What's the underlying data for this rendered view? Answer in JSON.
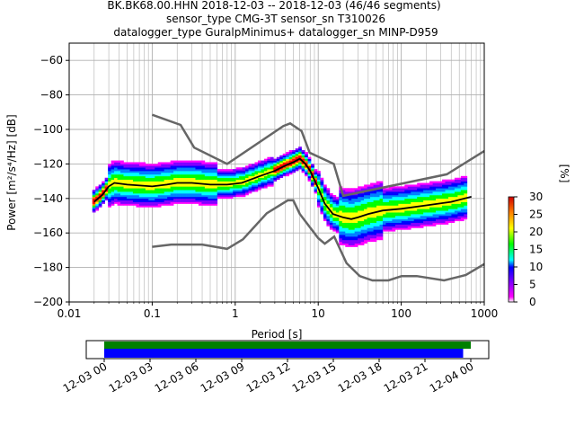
{
  "header": {
    "line1": "BK.BK68.00.HHN   2018-12-03 -- 2018-12-03  (46/46 segments)",
    "line2": "sensor_type CMG-3T sensor_sn T310026",
    "line3": "datalogger_type GuralpMinimus+ datalogger_sn MINP-D959"
  },
  "chart_data": [
    {
      "type": "heatmap",
      "title": "BK.BK68.00.HHN   2018-12-03 -- 2018-12-03  (46/46 segments)",
      "xlabel": "Period [s]",
      "ylabel": "Power [m²/s⁴/Hz] [dB]",
      "xscale": "log",
      "xlim": [
        0.01,
        1000
      ],
      "ylim": [
        -200,
        -50
      ],
      "x_ticks": [
        0.01,
        0.1,
        1,
        10,
        100,
        1000
      ],
      "x_tick_labels": [
        "0.01",
        "0.1",
        "1",
        "10",
        "100",
        "1000"
      ],
      "y_ticks": [
        -200,
        -180,
        -160,
        -140,
        -120,
        -100,
        -80,
        -60
      ],
      "y_tick_labels": [
        "−200",
        "−180",
        "−160",
        "−140",
        "−120",
        "−100",
        "−80",
        "−60"
      ],
      "grid": true,
      "colorbar": {
        "label": "[%]",
        "range": [
          0,
          30
        ],
        "ticks": [
          0,
          5,
          10,
          15,
          20,
          25,
          30
        ],
        "tick_labels": [
          "0",
          "5",
          "10",
          "15",
          "20",
          "25",
          "30"
        ],
        "colormap": "pqlx"
      },
      "series": [
        {
          "role": "mean",
          "color": "#000000",
          "x": [
            0.02,
            0.025,
            0.03,
            0.035,
            0.05,
            0.1,
            0.15,
            0.2,
            0.3,
            0.5,
            0.8,
            1.2,
            2,
            3,
            4,
            5,
            6,
            7,
            8,
            10,
            12,
            15,
            20,
            25,
            30,
            40,
            60,
            100,
            200,
            400,
            700
          ],
          "y": [
            -142,
            -138,
            -133,
            -131,
            -132,
            -133,
            -132,
            -131,
            -131,
            -132,
            -132,
            -131,
            -127,
            -124,
            -121,
            -119,
            -117,
            -120,
            -124,
            -134,
            -143,
            -149,
            -151,
            -152,
            -151,
            -149,
            -147,
            -146,
            -144,
            -142,
            -139
          ]
        },
        {
          "role": "NHNM",
          "color": "#666666",
          "x": [
            0.1,
            0.22,
            0.32,
            0.8,
            3.8,
            4.6,
            6.3,
            7.9,
            15.4,
            20,
            354.8,
            1000
          ],
          "y": [
            -91.5,
            -97.4,
            -110.5,
            -120,
            -98,
            -96.5,
            -101,
            -113.5,
            -120,
            -138.5,
            -126,
            -112.5
          ]
        },
        {
          "role": "NLNM",
          "color": "#666666",
          "x": [
            0.1,
            0.17,
            0.4,
            0.8,
            1.24,
            2.4,
            4.3,
            5,
            6,
            10,
            12,
            15.6,
            21.9,
            31.6,
            45,
            70,
            101,
            154,
            328,
            600,
            1000
          ],
          "y": [
            -168,
            -166.7,
            -166.7,
            -169.2,
            -163.7,
            -148.6,
            -141.1,
            -141.1,
            -149,
            -163,
            -166.2,
            -162.1,
            -177.5,
            -185,
            -187.5,
            -187.5,
            -185,
            -185,
            -187.5,
            -184.4,
            -178
          ]
        }
      ]
    },
    {
      "type": "timeline",
      "x_tick_labels": [
        "12-03 00",
        "12-03 03",
        "12-03 06",
        "12-03 09",
        "12-03 12",
        "12-03 15",
        "12-03 18",
        "12-03 21",
        "12-04 00"
      ],
      "bars": [
        {
          "role": "data coverage",
          "color": "#008000",
          "start": "12-03 00",
          "end": "12-04 00"
        },
        {
          "role": "psd segments",
          "color": "#0000ff",
          "start": "12-03 00",
          "end": "12-03 23.5"
        }
      ]
    }
  ]
}
